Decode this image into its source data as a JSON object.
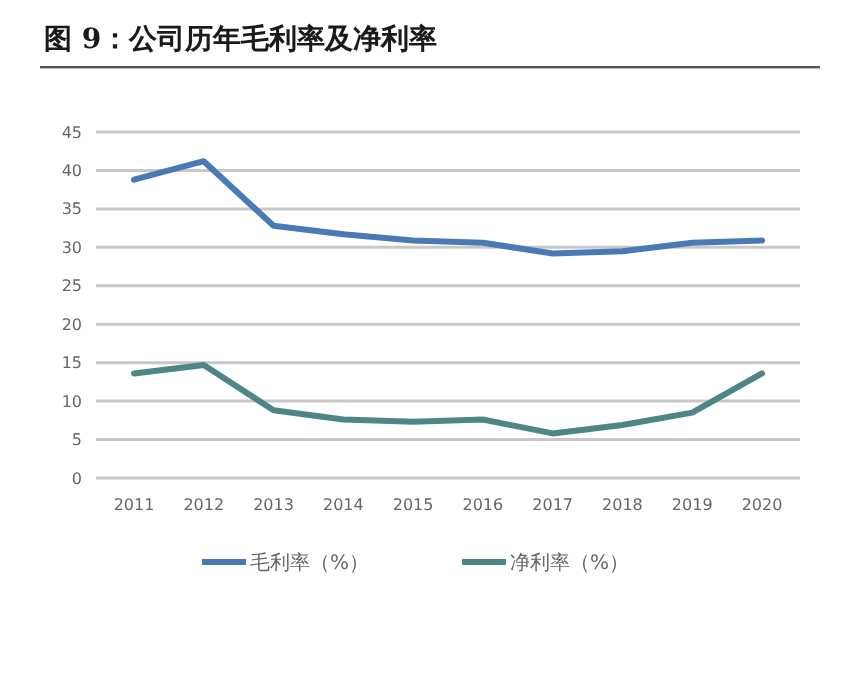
{
  "chart_data": {
    "type": "line",
    "title": "图 9：公司历年毛利率及净利率",
    "categories": [
      "2011",
      "2012",
      "2013",
      "2014",
      "2015",
      "2016",
      "2017",
      "2018",
      "2019",
      "2020"
    ],
    "series": [
      {
        "name": "毛利率（%）",
        "color": "#4a7ab5",
        "values": [
          38.8,
          41.2,
          32.8,
          31.7,
          30.9,
          30.6,
          29.2,
          29.5,
          30.6,
          30.9
        ]
      },
      {
        "name": "净利率（%）",
        "color": "#4e8585",
        "values": [
          13.6,
          14.7,
          8.8,
          7.6,
          7.3,
          7.6,
          5.8,
          6.9,
          8.5,
          13.6
        ]
      }
    ],
    "ylim": [
      0,
      45
    ],
    "yticks": [
      0,
      5,
      10,
      15,
      20,
      25,
      30,
      35,
      40,
      45
    ],
    "grid": "y",
    "legend": "bottom",
    "line_style": "solid",
    "marker": "none"
  }
}
